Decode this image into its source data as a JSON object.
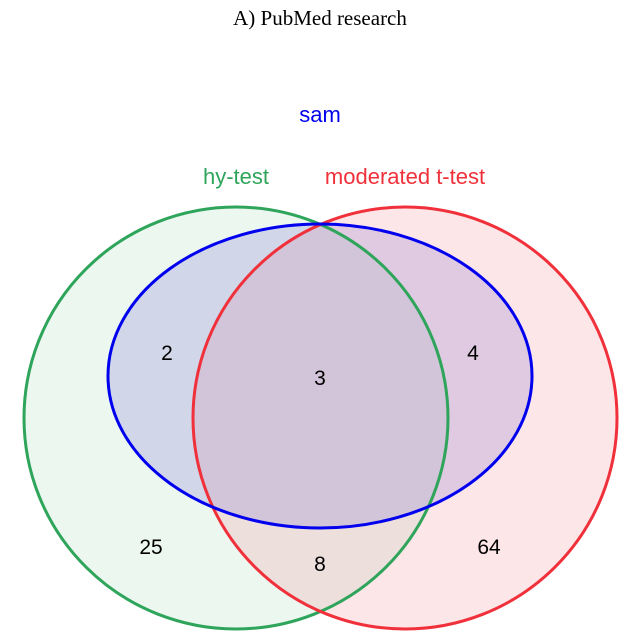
{
  "title": "A) PubMed research",
  "sets": {
    "hy_test": {
      "label": "hy-test",
      "stroke": "#2ea55a",
      "fill": "#2ea55a"
    },
    "moderated": {
      "label": "moderated t-test",
      "stroke": "#f0303a",
      "fill": "#f5828a"
    },
    "sam": {
      "label": "sam",
      "stroke": "#0000ee",
      "fill": "#6a5acd"
    }
  },
  "counts": {
    "hy_test_only": "25",
    "moderated_only": "64",
    "hy_test_and_sam": "2",
    "all_three": "3",
    "moderated_and_sam": "4",
    "hy_test_and_moderated": "8"
  }
}
